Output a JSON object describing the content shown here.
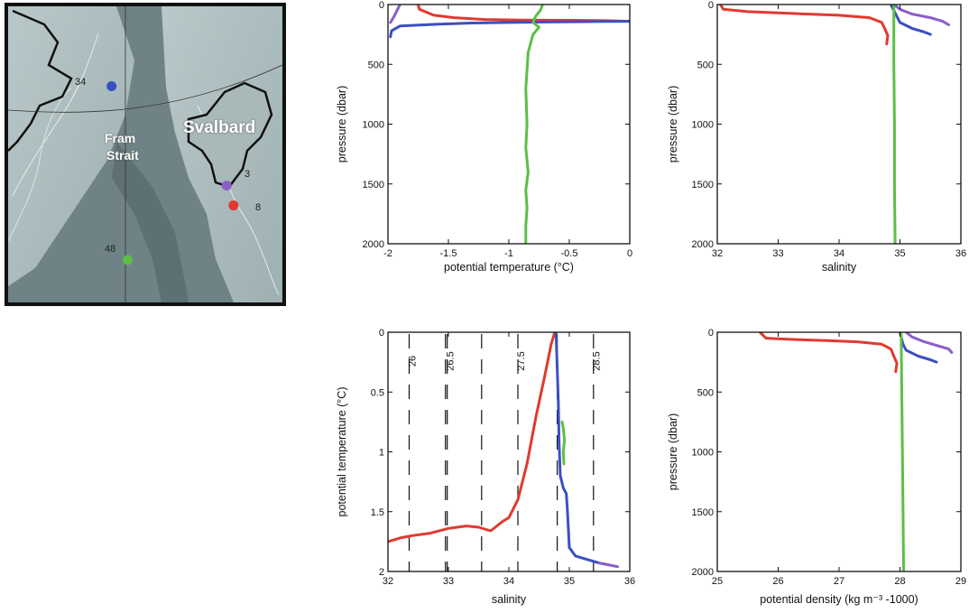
{
  "map": {
    "labels": {
      "svalbard": "Svalbard",
      "fram1": "Fram",
      "fram2": "Strait"
    },
    "stations": [
      {
        "id": "34",
        "color": "#3b4fc4",
        "lon": -0.5,
        "lat": 79.8
      },
      {
        "id": "3",
        "color": "#8b5ec7",
        "lon": 24.5,
        "lat": 77.8
      },
      {
        "id": "8",
        "color": "#e03a2f",
        "lon": 26.0,
        "lat": 77.4
      },
      {
        "id": "48",
        "color": "#5bbf46",
        "lon": 3.0,
        "lat": 76.3
      }
    ]
  },
  "chart_data": [
    {
      "type": "line",
      "xlabel": "potential temperature  (°C)",
      "ylabel": "pressure  (dbar)",
      "xlim": [
        -2,
        0
      ],
      "ylim": [
        2000,
        0
      ],
      "xticks": [
        "-2",
        "-1.5",
        "-1",
        "-0.5",
        "0"
      ],
      "yticks": [
        "0",
        "500",
        "1000",
        "1500",
        "2000"
      ],
      "series": [
        {
          "color": "#8b5ec7",
          "points": [
            [
              -1.9,
              0
            ],
            [
              -1.92,
              40
            ],
            [
              -1.95,
              100
            ],
            [
              -1.98,
              150
            ]
          ]
        },
        {
          "color": "#e03a2f",
          "points": [
            [
              -1.75,
              0
            ],
            [
              -1.74,
              40
            ],
            [
              -1.62,
              90
            ],
            [
              -1.45,
              110
            ],
            [
              -1.2,
              125
            ],
            [
              -0.9,
              130
            ],
            [
              -0.5,
              132
            ],
            [
              -0.2,
              135
            ],
            [
              0,
              140
            ],
            [
              0.1,
              145
            ]
          ]
        },
        {
          "color": "#3b4fc4",
          "points": [
            [
              -1.98,
              270
            ],
            [
              -1.97,
              220
            ],
            [
              -1.9,
              180
            ],
            [
              -1.6,
              165
            ],
            [
              -1.3,
              155
            ],
            [
              -1.0,
              150
            ],
            [
              -0.6,
              145
            ],
            [
              -0.2,
              142
            ],
            [
              0,
              140
            ],
            [
              0.1,
              140
            ]
          ]
        },
        {
          "color": "#5bbf46",
          "points": [
            [
              -0.72,
              0
            ],
            [
              -0.74,
              50
            ],
            [
              -0.78,
              100
            ],
            [
              -0.8,
              150
            ],
            [
              -0.75,
              190
            ],
            [
              -0.8,
              250
            ],
            [
              -0.84,
              400
            ],
            [
              -0.86,
              700
            ],
            [
              -0.85,
              1000
            ],
            [
              -0.86,
              1200
            ],
            [
              -0.84,
              1400
            ],
            [
              -0.86,
              1550
            ],
            [
              -0.85,
              1700
            ],
            [
              -0.86,
              1850
            ],
            [
              -0.86,
              2000
            ]
          ]
        }
      ]
    },
    {
      "type": "line",
      "xlabel": "salinity",
      "ylabel": "pressure  (dbar)",
      "xlim": [
        32,
        36
      ],
      "ylim": [
        2000,
        0
      ],
      "xticks": [
        "32",
        "33",
        "34",
        "35",
        "36"
      ],
      "yticks": [
        "0",
        "500",
        "1000",
        "1500",
        "2000"
      ],
      "series": [
        {
          "color": "#e03a2f",
          "points": [
            [
              32.05,
              0
            ],
            [
              32.1,
              40
            ],
            [
              32.5,
              60
            ],
            [
              33.0,
              70
            ],
            [
              33.5,
              80
            ],
            [
              34.0,
              90
            ],
            [
              34.5,
              110
            ],
            [
              34.7,
              150
            ],
            [
              34.75,
              200
            ],
            [
              34.8,
              260
            ],
            [
              34.78,
              330
            ]
          ]
        },
        {
          "color": "#3b4fc4",
          "points": [
            [
              34.85,
              0
            ],
            [
              34.9,
              50
            ],
            [
              34.95,
              100
            ],
            [
              35.0,
              150
            ],
            [
              35.2,
              200
            ],
            [
              35.4,
              230
            ],
            [
              35.5,
              250
            ]
          ]
        },
        {
          "color": "#8b5ec7",
          "points": [
            [
              34.9,
              0
            ],
            [
              35.0,
              40
            ],
            [
              35.2,
              80
            ],
            [
              35.5,
              110
            ],
            [
              35.7,
              140
            ],
            [
              35.8,
              170
            ]
          ]
        },
        {
          "color": "#5bbf46",
          "points": [
            [
              34.9,
              0
            ],
            [
              34.9,
              500
            ],
            [
              34.91,
              1000
            ],
            [
              34.91,
              1500
            ],
            [
              34.92,
              2000
            ]
          ]
        }
      ]
    },
    {
      "type": "line",
      "xlabel": "salinity",
      "ylabel": "potential temperature  (°C)",
      "xlim": [
        32,
        36
      ],
      "ylim": [
        2,
        0
      ],
      "xticks": [
        "32",
        "33",
        "34",
        "35",
        "36"
      ],
      "yticks": [
        "0",
        "0.5",
        "1",
        "1.5",
        "2"
      ],
      "sigma_isopycnals": [
        {
          "label": "26",
          "s": 32.35
        },
        {
          "label": "",
          "s": 32.95
        },
        {
          "label": "26.5",
          "s": 32.98
        },
        {
          "label": "",
          "s": 33.55
        },
        {
          "label": "27.5",
          "s": 34.15
        },
        {
          "label": "",
          "s": 34.8
        },
        {
          "label": "28.5",
          "s": 35.4
        }
      ],
      "series": [
        {
          "color": "#e03a2f",
          "points": [
            [
              32.0,
              1.75
            ],
            [
              32.2,
              1.72
            ],
            [
              32.4,
              1.7
            ],
            [
              32.7,
              1.68
            ],
            [
              33.0,
              1.64
            ],
            [
              33.3,
              1.62
            ],
            [
              33.5,
              1.63
            ],
            [
              33.7,
              1.66
            ],
            [
              33.9,
              1.58
            ],
            [
              34.0,
              1.55
            ],
            [
              34.1,
              1.45
            ],
            [
              34.15,
              1.4
            ],
            [
              34.3,
              1.1
            ],
            [
              34.45,
              0.7
            ],
            [
              34.6,
              0.35
            ],
            [
              34.7,
              0.1
            ],
            [
              34.76,
              0
            ]
          ]
        },
        {
          "color": "#3b4fc4",
          "points": [
            [
              34.78,
              0
            ],
            [
              34.8,
              0.3
            ],
            [
              34.82,
              0.6
            ],
            [
              34.83,
              0.9
            ],
            [
              34.85,
              1.2
            ],
            [
              34.9,
              1.3
            ],
            [
              34.95,
              1.35
            ],
            [
              34.97,
              1.5
            ],
            [
              35.0,
              1.8
            ],
            [
              35.1,
              1.87
            ],
            [
              35.3,
              1.9
            ],
            [
              35.5,
              1.93
            ],
            [
              35.6,
              1.94
            ]
          ]
        },
        {
          "color": "#8b5ec7",
          "points": [
            [
              35.5,
              1.93
            ],
            [
              35.6,
              1.94
            ],
            [
              35.7,
              1.95
            ],
            [
              35.8,
              1.96
            ]
          ]
        },
        {
          "color": "#5bbf46",
          "points": [
            [
              34.88,
              0.75
            ],
            [
              34.9,
              0.8
            ],
            [
              34.92,
              0.9
            ],
            [
              34.9,
              1.0
            ],
            [
              34.91,
              1.1
            ]
          ]
        }
      ]
    },
    {
      "type": "line",
      "xlabel": "potential density  (kg m⁻³ -1000)",
      "ylabel": "pressure  (dbar)",
      "xlim": [
        25,
        29
      ],
      "ylim": [
        2000,
        0
      ],
      "xticks": [
        "25",
        "26",
        "27",
        "28",
        "29"
      ],
      "yticks": [
        "0",
        "500",
        "1000",
        "1500",
        "2000"
      ],
      "series": [
        {
          "color": "#e03a2f",
          "points": [
            [
              25.7,
              0
            ],
            [
              25.8,
              50
            ],
            [
              26.2,
              60
            ],
            [
              26.8,
              70
            ],
            [
              27.3,
              80
            ],
            [
              27.7,
              100
            ],
            [
              27.85,
              140
            ],
            [
              27.9,
              200
            ],
            [
              27.95,
              260
            ],
            [
              27.93,
              330
            ]
          ]
        },
        {
          "color": "#3b4fc4",
          "points": [
            [
              28.0,
              0
            ],
            [
              28.05,
              100
            ],
            [
              28.1,
              150
            ],
            [
              28.3,
              200
            ],
            [
              28.5,
              230
            ],
            [
              28.6,
              250
            ]
          ]
        },
        {
          "color": "#8b5ec7",
          "points": [
            [
              28.1,
              0
            ],
            [
              28.2,
              40
            ],
            [
              28.4,
              80
            ],
            [
              28.6,
              110
            ],
            [
              28.8,
              140
            ],
            [
              28.85,
              170
            ]
          ]
        },
        {
          "color": "#5bbf46",
          "points": [
            [
              28.02,
              0
            ],
            [
              28.03,
              500
            ],
            [
              28.04,
              1000
            ],
            [
              28.05,
              1500
            ],
            [
              28.06,
              2000
            ]
          ]
        }
      ]
    }
  ]
}
